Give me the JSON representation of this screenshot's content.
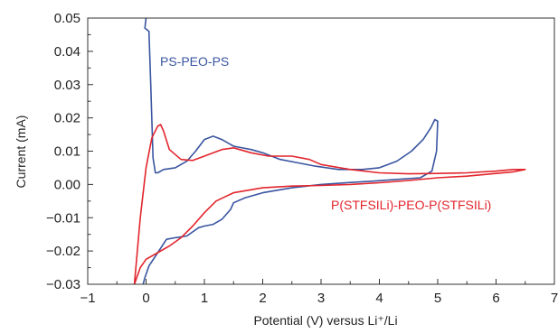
{
  "chart_data": {
    "type": "line",
    "xlabel": "Potential (V) versus Li⁺/Li",
    "ylabel": "Current (mA)",
    "xlim": [
      -1,
      7
    ],
    "ylim": [
      -0.03,
      0.05
    ],
    "x_ticks": [
      -1,
      0,
      1,
      2,
      3,
      4,
      5,
      6,
      7
    ],
    "y_ticks": [
      -0.03,
      -0.02,
      -0.01,
      0.0,
      0.01,
      0.02,
      0.03,
      0.04,
      0.05
    ],
    "x_tick_labels": [
      "−1",
      "0",
      "1",
      "2",
      "3",
      "4",
      "5",
      "6",
      "7"
    ],
    "y_tick_labels": [
      "−0.03",
      "−0.02",
      "−0.01",
      "0.00",
      "0.01",
      "0.02",
      "0.03",
      "0.04",
      "0.05"
    ],
    "grid": false,
    "legend": "inline labels",
    "series": [
      {
        "name": "PS-PEO-PS",
        "color": "#3a55a0",
        "x": [
          0.0,
          -0.02,
          0.05,
          0.08,
          0.12,
          0.16,
          0.2,
          0.3,
          0.5,
          0.7,
          0.85,
          1.0,
          1.15,
          1.3,
          1.5,
          1.8,
          2.0,
          2.3,
          2.6,
          2.9,
          3.3,
          3.7,
          4.0,
          4.3,
          4.55,
          4.75,
          4.88,
          4.95,
          5.0,
          4.98,
          4.9,
          4.7,
          4.3,
          3.9,
          3.5,
          3.0,
          2.5,
          2.0,
          1.7,
          1.5,
          1.45,
          1.3,
          1.15,
          1.0,
          0.9,
          0.7,
          0.5,
          0.35,
          0.2,
          0.05,
          -0.02,
          -0.05
        ],
        "y": [
          0.05,
          0.047,
          0.046,
          0.03,
          0.008,
          0.0035,
          0.0035,
          0.0045,
          0.005,
          0.007,
          0.01,
          0.0135,
          0.0145,
          0.0135,
          0.0115,
          0.0105,
          0.0095,
          0.0075,
          0.0065,
          0.0055,
          0.0045,
          0.0045,
          0.005,
          0.007,
          0.01,
          0.0135,
          0.017,
          0.0195,
          0.019,
          0.01,
          0.004,
          0.002,
          0.0015,
          0.001,
          0.0006,
          0.0,
          -0.001,
          -0.0025,
          -0.004,
          -0.0055,
          -0.0075,
          -0.0105,
          -0.012,
          -0.0125,
          -0.013,
          -0.0155,
          -0.016,
          -0.0165,
          -0.0205,
          -0.0245,
          -0.028,
          -0.03
        ]
      },
      {
        "name": "P(STFSILi)-PEO-P(STFSILi)",
        "color": "#e2252c",
        "x": [
          -0.2,
          -0.1,
          0.0,
          0.1,
          0.2,
          0.25,
          0.3,
          0.4,
          0.6,
          0.8,
          1.0,
          1.3,
          1.5,
          1.8,
          2.1,
          2.5,
          2.8,
          3.0,
          3.5,
          4.0,
          4.5,
          5.0,
          5.5,
          6.0,
          6.3,
          6.5,
          6.3,
          6.0,
          5.5,
          5.0,
          4.5,
          4.0,
          3.5,
          3.0,
          2.5,
          2.0,
          1.5,
          1.2,
          1.0,
          0.8,
          0.6,
          0.4,
          0.2,
          0.0,
          -0.1,
          -0.2
        ],
        "y": [
          -0.03,
          -0.01,
          0.005,
          0.014,
          0.0175,
          0.018,
          0.016,
          0.0105,
          0.0075,
          0.0072,
          0.0085,
          0.0105,
          0.011,
          0.0095,
          0.0085,
          0.0085,
          0.0075,
          0.006,
          0.0045,
          0.0035,
          0.0032,
          0.0033,
          0.0035,
          0.004,
          0.0045,
          0.0045,
          0.0038,
          0.0033,
          0.0025,
          0.002,
          0.0012,
          0.0005,
          0.0,
          -0.0003,
          -0.0005,
          -0.001,
          -0.0025,
          -0.005,
          -0.0085,
          -0.0125,
          -0.016,
          -0.0185,
          -0.0205,
          -0.0225,
          -0.025,
          -0.03
        ]
      }
    ]
  }
}
